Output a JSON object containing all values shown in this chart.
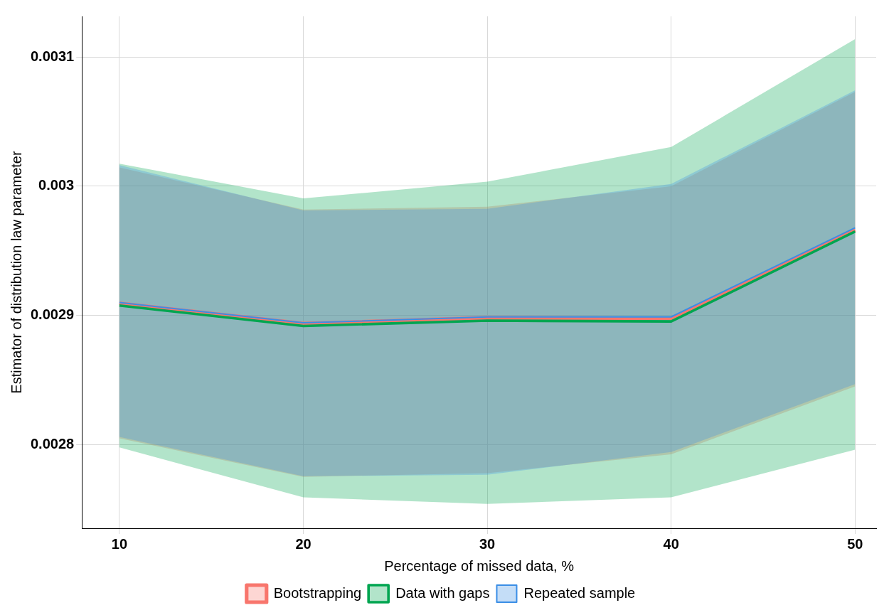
{
  "chart_data": {
    "type": "line",
    "xlabel": "Percentage of missed data, %",
    "ylabel": "Estimator of distribution law parameter",
    "x": [
      10,
      20,
      30,
      40,
      50
    ],
    "xlim": [
      7.96,
      51.15
    ],
    "xticks": [
      10,
      20,
      30,
      40,
      50
    ],
    "ylim": [
      0.0027351,
      0.0031316
    ],
    "yticks": [
      0.0028,
      0.0029,
      0.003,
      0.0031
    ],
    "grid": true,
    "legend": "bottom",
    "marker": "none",
    "series": [
      {
        "name": "Bootstrapping",
        "color": "#f8766d",
        "values": [
          0.0029094,
          0.0028936,
          0.0028982,
          0.0028977,
          0.0029661
        ],
        "lower": [
          0.0028047,
          0.0027749,
          0.0027778,
          0.0027924,
          0.002845
        ],
        "upper": [
          0.0030146,
          0.0029819,
          0.0029842,
          0.003,
          0.0030731
        ]
      },
      {
        "name": "Data with gaps",
        "color": "#00a550",
        "values": [
          0.0029076,
          0.0028918,
          0.0028959,
          0.0028953,
          0.0029649
        ],
        "lower": [
          0.0027977,
          0.002759,
          0.002754,
          0.002759,
          0.002796
        ],
        "upper": [
          0.0030175,
          0.0029906,
          0.0030035,
          0.0030304,
          0.003114
        ]
      },
      {
        "name": "Repeated sample",
        "color": "#3a8ee6",
        "values": [
          0.0029099,
          0.0028942,
          0.0028988,
          0.0028988,
          0.0029678
        ],
        "lower": [
          0.0028058,
          0.0027754,
          0.0027766,
          0.0027942,
          0.0028468
        ],
        "upper": [
          0.0030164,
          0.0029813,
          0.0029825,
          0.0030018,
          0.0030743
        ]
      }
    ]
  }
}
